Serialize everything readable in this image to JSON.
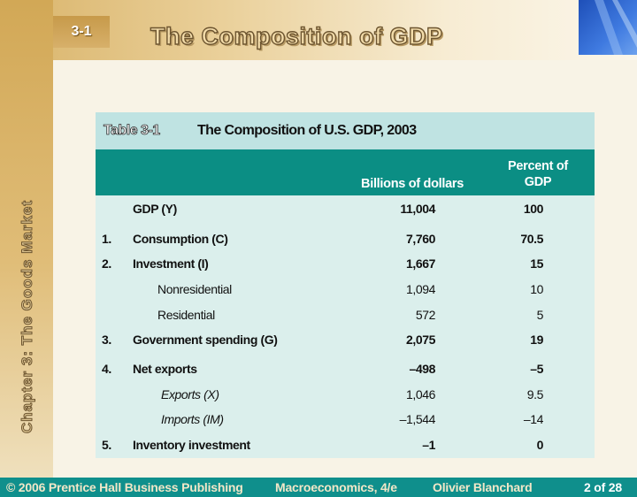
{
  "slide": {
    "number": "3-1",
    "title": "The Composition of GDP",
    "chapter_label": "Chapter 3: The Goods Market"
  },
  "table": {
    "caption_number": "Table 3-1",
    "caption_title": "The Composition of U.S. GDP, 2003",
    "header": {
      "billions": "Billions of dollars",
      "percent_line1": "Percent of",
      "percent_line2": "GDP"
    },
    "rows": [
      {
        "num": "",
        "label": "GDP (Y)",
        "billions": "11,004",
        "percent": "100"
      },
      {
        "num": "1.",
        "label": "Consumption (C)",
        "billions": "7,760",
        "percent": "70.5"
      },
      {
        "num": "2.",
        "label": "Investment (I)",
        "billions": "1,667",
        "percent": "15"
      },
      {
        "num": "",
        "label": "Nonresidential",
        "billions": "1,094",
        "percent": "10"
      },
      {
        "num": "",
        "label": "Residential",
        "billions": "572",
        "percent": "5"
      },
      {
        "num": "3.",
        "label": "Government spending (G)",
        "billions": "2,075",
        "percent": "19"
      },
      {
        "num": "4.",
        "label": "Net exports",
        "billions": "–498",
        "percent": "–5"
      },
      {
        "num": "",
        "label": "Exports (X)",
        "billions": "1,046",
        "percent": "9.5"
      },
      {
        "num": "",
        "label": "Imports (IM)",
        "billions": "–1,544",
        "percent": "–14"
      },
      {
        "num": "5.",
        "label": "Inventory investment",
        "billions": "–1",
        "percent": "0"
      }
    ]
  },
  "footer": {
    "copyright": "© 2006 Prentice Hall Business Publishing",
    "book": "Macroeconomics, 4/e",
    "author": "Olivier Blanchard",
    "page": "2 of 28"
  },
  "colors": {
    "header_teal": "#0b8e84",
    "table_bg": "#dbefec",
    "caption_bg": "#bfe3e2",
    "footer_bg": "#0f8f8c",
    "gold_band": "#d2a856"
  }
}
